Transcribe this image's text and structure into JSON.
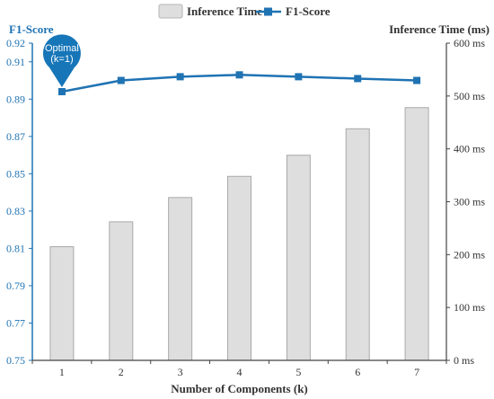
{
  "chart_data": {
    "type": "bar+line",
    "categories": [
      "1",
      "2",
      "3",
      "4",
      "5",
      "6",
      "7"
    ],
    "xlabel": "Number of Components (k)",
    "legend": {
      "placement": "top-center",
      "items": [
        "Inference Time",
        "F1-Score"
      ]
    },
    "left_axis": {
      "title": "F1-Score",
      "ylim": [
        0.75,
        0.92
      ],
      "ticks": [
        "0.75",
        "0.77",
        "0.79",
        "0.81",
        "0.83",
        "0.85",
        "0.87",
        "0.89",
        "0.91",
        "0.92"
      ],
      "tick_values": [
        0.75,
        0.77,
        0.79,
        0.81,
        0.83,
        0.85,
        0.87,
        0.89,
        0.91,
        0.92
      ],
      "color": "#1f73b3"
    },
    "right_axis": {
      "title": "Inference Time (ms)",
      "ylim": [
        0,
        600
      ],
      "ticks": [
        "0 ms",
        "100 ms",
        "200 ms",
        "300 ms",
        "400 ms",
        "500 ms",
        "600 ms"
      ],
      "tick_values": [
        0,
        100,
        200,
        300,
        400,
        500,
        600
      ]
    },
    "series": [
      {
        "name": "Inference Time",
        "type": "bar",
        "axis": "right",
        "color": "#dedede",
        "values": [
          215,
          262,
          308,
          348,
          388,
          438,
          478
        ]
      },
      {
        "name": "F1-Score",
        "type": "line",
        "axis": "left",
        "color": "#1f73b3",
        "values": [
          0.894,
          0.9,
          0.902,
          0.903,
          0.902,
          0.901,
          0.9
        ]
      }
    ],
    "annotation": {
      "category_index": 0,
      "lines": [
        "Optimal",
        "(k=1)"
      ]
    },
    "grid": false
  }
}
